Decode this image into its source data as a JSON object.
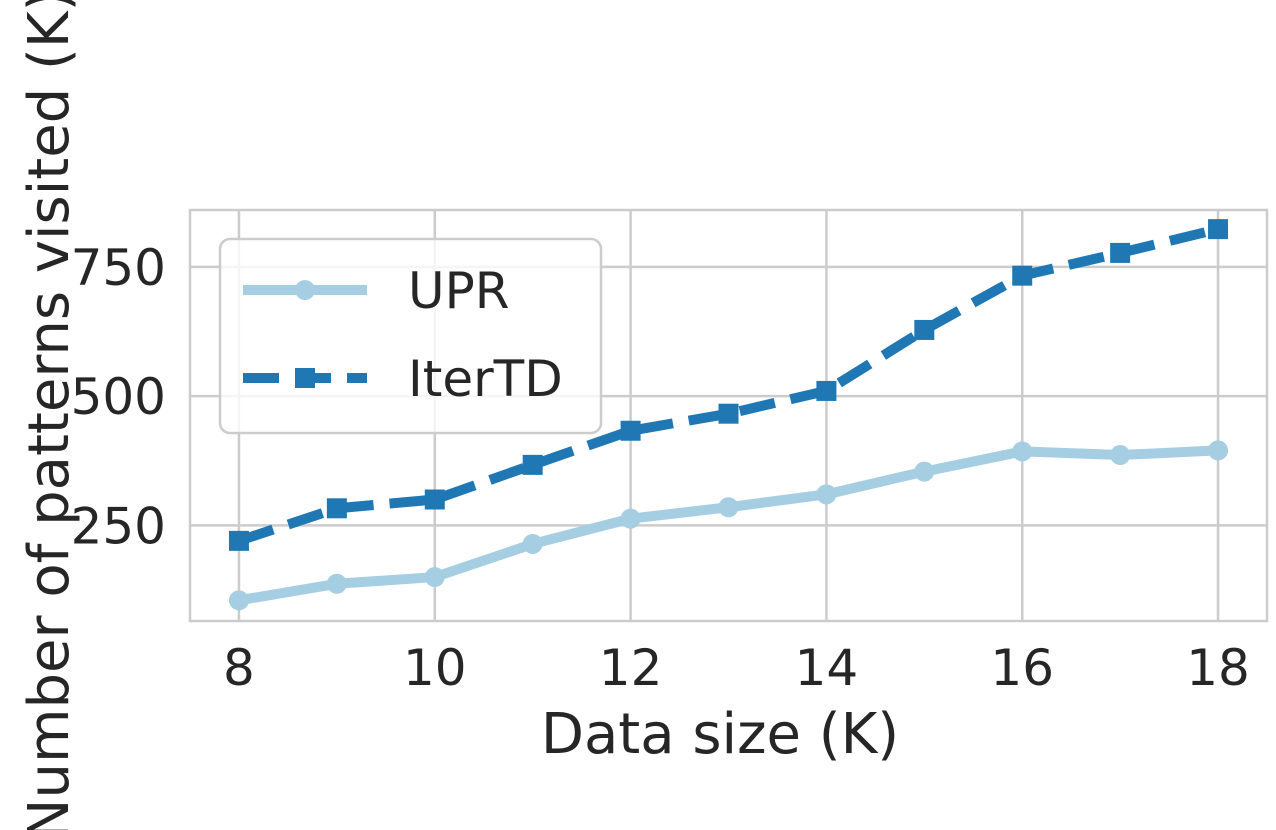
{
  "chart_data": {
    "type": "line",
    "xlabel": "Data size (K)",
    "ylabel": "Number of patterns visited (K)",
    "x": [
      8,
      9,
      10,
      11,
      12,
      13,
      14,
      15,
      16,
      17,
      18
    ],
    "xticks": [
      8,
      10,
      12,
      14,
      16,
      18
    ],
    "xlim": [
      7.5,
      18.5
    ],
    "yticks": [
      250,
      500,
      750
    ],
    "ylim": [
      65,
      860
    ],
    "grid": true,
    "legend_position": "upper-left",
    "series": [
      {
        "name": "UPR",
        "values": [
          105,
          137,
          150,
          214,
          263,
          285,
          310,
          354,
          393,
          386,
          395
        ],
        "color": "#a6cee3",
        "marker": "circle",
        "line_style": "solid"
      },
      {
        "name": "IterTD",
        "values": [
          220,
          283,
          300,
          367,
          433,
          466,
          510,
          628,
          733,
          777,
          823
        ],
        "color": "#1f78b4",
        "marker": "square",
        "line_style": "dashed"
      }
    ]
  }
}
